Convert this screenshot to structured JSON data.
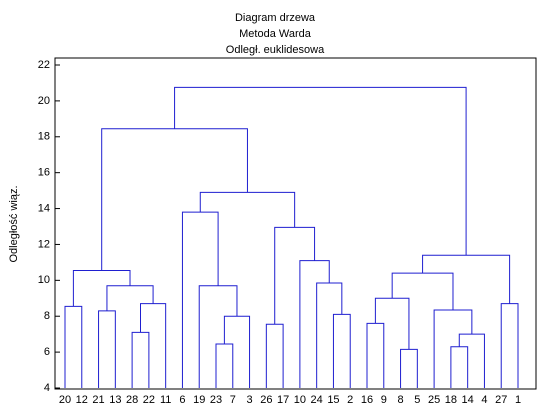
{
  "chart_data": {
    "type": "dendrogram",
    "title": "Diagram drzewa",
    "subtitle": "Metoda Warda",
    "subtitle2": "Odległ. euklidesowa",
    "ylabel": "Odległość wiąz.",
    "ylim": [
      4,
      22
    ],
    "yticks": [
      4,
      6,
      8,
      10,
      12,
      14,
      16,
      18,
      20,
      22
    ],
    "color": "#1f1fd0",
    "tree": {
      "height": 20.75,
      "children": [
        {
          "height": 18.45,
          "children": [
            {
              "height": 10.55,
              "children": [
                {
                  "height": 8.55,
                  "children": [
                    {
                      "label": "20"
                    },
                    {
                      "label": "12"
                    }
                  ]
                },
                {
                  "height": 9.7,
                  "children": [
                    {
                      "height": 8.3,
                      "children": [
                        {
                          "label": "21"
                        },
                        {
                          "label": "13"
                        }
                      ]
                    },
                    {
                      "height": 8.7,
                      "children": [
                        {
                          "height": 7.1,
                          "children": [
                            {
                              "label": "28"
                            },
                            {
                              "label": "22"
                            }
                          ]
                        },
                        {
                          "label": "11"
                        }
                      ]
                    }
                  ]
                }
              ]
            },
            {
              "height": 14.9,
              "children": [
                {
                  "height": 13.8,
                  "children": [
                    {
                      "label": "6"
                    },
                    {
                      "height": 9.7,
                      "children": [
                        {
                          "label": "19"
                        },
                        {
                          "height": 8.0,
                          "children": [
                            {
                              "height": 6.45,
                              "children": [
                                {
                                  "label": "23"
                                },
                                {
                                  "label": "7"
                                }
                              ]
                            },
                            {
                              "label": "3"
                            }
                          ]
                        }
                      ]
                    }
                  ]
                },
                {
                  "height": 12.95,
                  "children": [
                    {
                      "height": 7.55,
                      "children": [
                        {
                          "label": "26"
                        },
                        {
                          "label": "17"
                        }
                      ]
                    },
                    {
                      "height": 11.1,
                      "children": [
                        {
                          "label": "10"
                        },
                        {
                          "height": 9.85,
                          "children": [
                            {
                              "label": "24"
                            },
                            {
                              "height": 8.1,
                              "children": [
                                {
                                  "label": "15"
                                },
                                {
                                  "label": "2"
                                }
                              ]
                            }
                          ]
                        }
                      ]
                    }
                  ]
                }
              ]
            }
          ]
        },
        {
          "height": 11.4,
          "children": [
            {
              "height": 10.4,
              "children": [
                {
                  "height": 9.0,
                  "children": [
                    {
                      "height": 7.6,
                      "children": [
                        {
                          "label": "16"
                        },
                        {
                          "label": "9"
                        }
                      ]
                    },
                    {
                      "height": 6.15,
                      "children": [
                        {
                          "label": "8"
                        },
                        {
                          "label": "5"
                        }
                      ]
                    }
                  ]
                },
                {
                  "height": 8.35,
                  "children": [
                    {
                      "label": "25"
                    },
                    {
                      "height": 7.0,
                      "children": [
                        {
                          "height": 6.3,
                          "children": [
                            {
                              "label": "18"
                            },
                            {
                              "label": "14"
                            }
                          ]
                        },
                        {
                          "label": "4"
                        }
                      ]
                    }
                  ]
                }
              ]
            },
            {
              "height": 8.7,
              "children": [
                {
                  "label": "27"
                },
                {
                  "label": "1"
                }
              ]
            }
          ]
        }
      ]
    }
  }
}
